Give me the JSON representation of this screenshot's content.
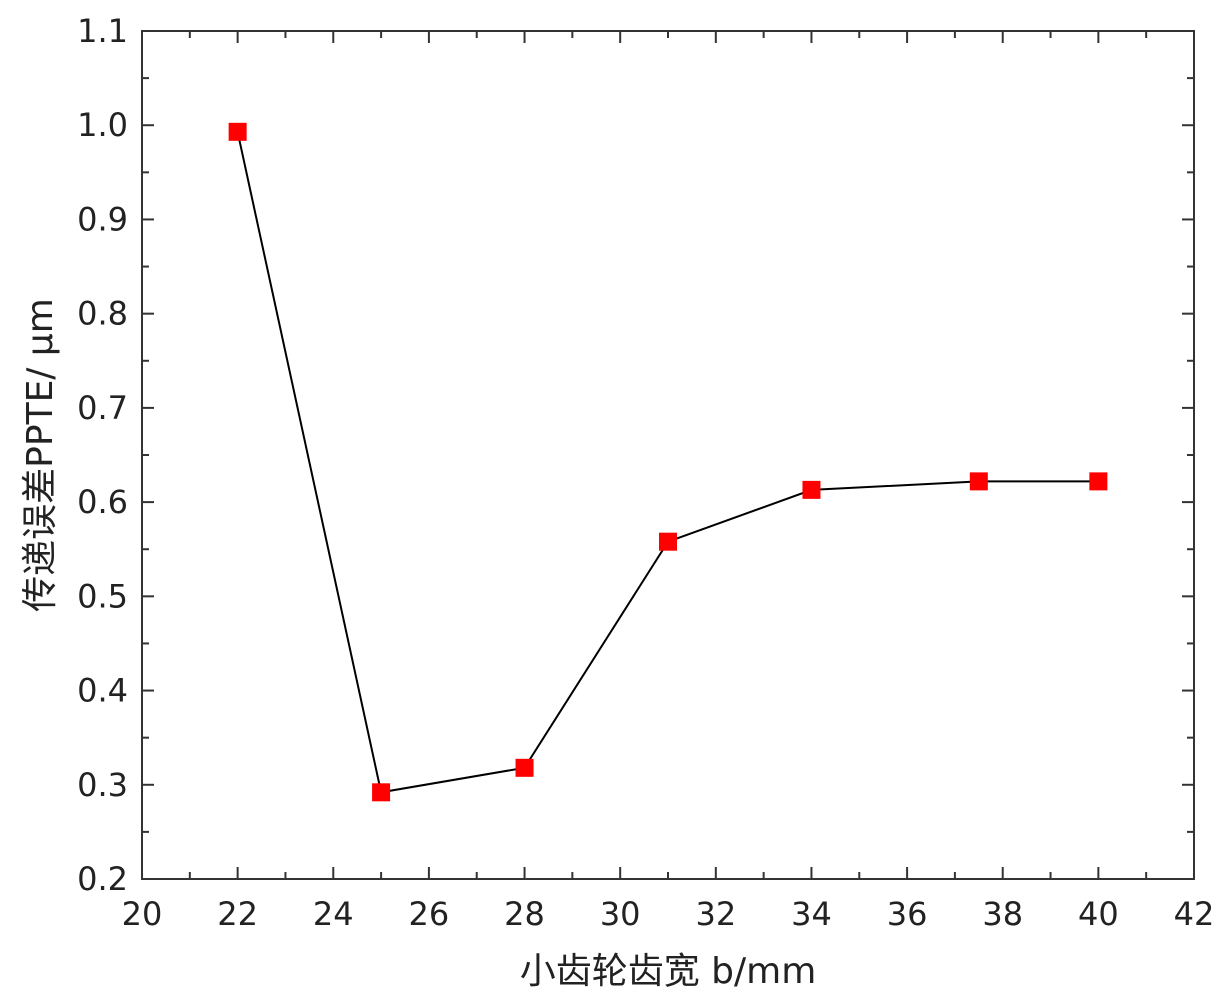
{
  "chart_data": {
    "type": "line",
    "xlabel": "小齿轮齿宽 b/mm",
    "ylabel": "传递误差PPTE/ μm",
    "xlim": [
      20,
      42
    ],
    "ylim": [
      0.2,
      1.1
    ],
    "x_ticks": [
      "20",
      "22",
      "24",
      "26",
      "28",
      "30",
      "32",
      "34",
      "36",
      "38",
      "40",
      "42"
    ],
    "y_ticks": [
      "0.2",
      "0.3",
      "0.4",
      "0.5",
      "0.6",
      "0.7",
      "0.8",
      "0.9",
      "1.0",
      "1.1"
    ],
    "grid": false,
    "series": [
      {
        "x": [
          22,
          25,
          28,
          31,
          34,
          37.5,
          40
        ],
        "values": [
          0.993,
          0.292,
          0.318,
          0.558,
          0.613,
          0.622,
          0.622
        ],
        "line_color": "#000000",
        "marker": "square",
        "marker_color": "#ff0000"
      }
    ]
  }
}
